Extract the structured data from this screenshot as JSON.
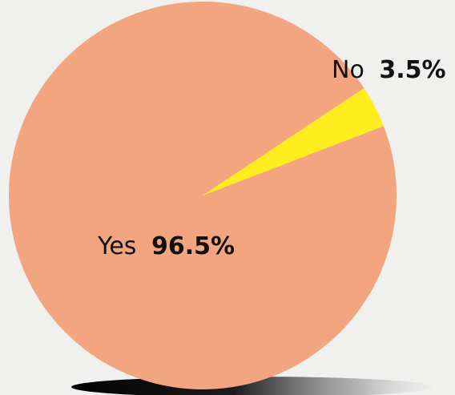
{
  "chart_data": {
    "type": "pie",
    "title": "",
    "slices": [
      {
        "label": "Yes",
        "value": 96.5,
        "display_value": "96.5%",
        "color": "#f2a57f"
      },
      {
        "label": "No",
        "value": 3.5,
        "display_value": "3.5%",
        "color": "#ffee1f"
      }
    ],
    "legend": "none",
    "labels_on_chart": true
  },
  "colors": {
    "background": "#f0f0ef",
    "shadow": "#000000"
  }
}
